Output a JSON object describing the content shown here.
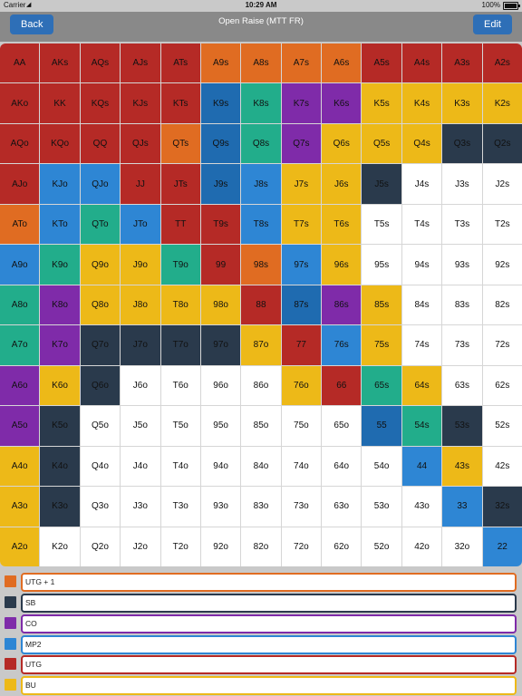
{
  "status_bar": {
    "carrier": "Carrier",
    "time": "10:29 AM",
    "battery": "100%"
  },
  "nav": {
    "back_label": "Back",
    "title": "Open Raise (MTT FR)",
    "edit_label": "Edit"
  },
  "colors": {
    "R": "#b52a26",
    "O": "#e06c22",
    "Y": "#edb918",
    "G": "#22ad8b",
    "B": "#2e86d4",
    "D": "#1f6bb0",
    "P": "#7f2ba9",
    "N": "#2a3a4c",
    "W": "#ffffff"
  },
  "grid": {
    "rows": [
      [
        "AA",
        "AKs",
        "AQs",
        "AJs",
        "ATs",
        "A9s",
        "A8s",
        "A7s",
        "A6s",
        "A5s",
        "A4s",
        "A3s",
        "A2s"
      ],
      [
        "AKo",
        "KK",
        "KQs",
        "KJs",
        "KTs",
        "K9s",
        "K8s",
        "K7s",
        "K6s",
        "K5s",
        "K4s",
        "K3s",
        "K2s"
      ],
      [
        "AQo",
        "KQo",
        "QQ",
        "QJs",
        "QTs",
        "Q9s",
        "Q8s",
        "Q7s",
        "Q6s",
        "Q5s",
        "Q4s",
        "Q3s",
        "Q2s"
      ],
      [
        "AJo",
        "KJo",
        "QJo",
        "JJ",
        "JTs",
        "J9s",
        "J8s",
        "J7s",
        "J6s",
        "J5s",
        "J4s",
        "J3s",
        "J2s"
      ],
      [
        "ATo",
        "KTo",
        "QTo",
        "JTo",
        "TT",
        "T9s",
        "T8s",
        "T7s",
        "T6s",
        "T5s",
        "T4s",
        "T3s",
        "T2s"
      ],
      [
        "A9o",
        "K9o",
        "Q9o",
        "J9o",
        "T9o",
        "99",
        "98s",
        "97s",
        "96s",
        "95s",
        "94s",
        "93s",
        "92s"
      ],
      [
        "A8o",
        "K8o",
        "Q8o",
        "J8o",
        "T8o",
        "98o",
        "88",
        "87s",
        "86s",
        "85s",
        "84s",
        "83s",
        "82s"
      ],
      [
        "A7o",
        "K7o",
        "Q7o",
        "J7o",
        "T7o",
        "97o",
        "87o",
        "77",
        "76s",
        "75s",
        "74s",
        "73s",
        "72s"
      ],
      [
        "A6o",
        "K6o",
        "Q6o",
        "J6o",
        "T6o",
        "96o",
        "86o",
        "76o",
        "66",
        "65s",
        "64s",
        "63s",
        "62s"
      ],
      [
        "A5o",
        "K5o",
        "Q5o",
        "J5o",
        "T5o",
        "95o",
        "85o",
        "75o",
        "65o",
        "55",
        "54s",
        "53s",
        "52s"
      ],
      [
        "A4o",
        "K4o",
        "Q4o",
        "J4o",
        "T4o",
        "94o",
        "84o",
        "74o",
        "64o",
        "54o",
        "44",
        "43s",
        "42s"
      ],
      [
        "A3o",
        "K3o",
        "Q3o",
        "J3o",
        "T3o",
        "93o",
        "83o",
        "73o",
        "63o",
        "53o",
        "43o",
        "33",
        "32s"
      ],
      [
        "A2o",
        "K2o",
        "Q2o",
        "J2o",
        "T2o",
        "92o",
        "82o",
        "72o",
        "62o",
        "52o",
        "42o",
        "32o",
        "22"
      ]
    ],
    "cell_colors": [
      [
        "R",
        "R",
        "R",
        "R",
        "R",
        "O",
        "O",
        "O",
        "O",
        "R",
        "R",
        "R",
        "R"
      ],
      [
        "R",
        "R",
        "R",
        "R",
        "R",
        "D",
        "G",
        "P",
        "P",
        "Y",
        "Y",
        "Y",
        "Y"
      ],
      [
        "R",
        "R",
        "R",
        "R",
        "O",
        "D",
        "G",
        "P",
        "Y",
        "Y",
        "Y",
        "N",
        "N"
      ],
      [
        "R",
        "B",
        "B",
        "R",
        "R",
        "D",
        "B",
        "Y",
        "Y",
        "N",
        "W",
        "W",
        "W"
      ],
      [
        "O",
        "B",
        "G",
        "B",
        "R",
        "R",
        "B",
        "Y",
        "Y",
        "W",
        "W",
        "W",
        "W"
      ],
      [
        "B",
        "G",
        "Y",
        "Y",
        "G",
        "R",
        "O",
        "B",
        "Y",
        "W",
        "W",
        "W",
        "W"
      ],
      [
        "G",
        "P",
        "Y",
        "Y",
        "Y",
        "Y",
        "R",
        "D",
        "P",
        "Y",
        "W",
        "W",
        "W"
      ],
      [
        "G",
        "P",
        "N",
        "N",
        "N",
        "N",
        "Y",
        "R",
        "B",
        "Y",
        "W",
        "W",
        "W"
      ],
      [
        "P",
        "Y",
        "N",
        "W",
        "W",
        "W",
        "W",
        "Y",
        "R",
        "G",
        "Y",
        "W",
        "W"
      ],
      [
        "P",
        "N",
        "W",
        "W",
        "W",
        "W",
        "W",
        "W",
        "W",
        "D",
        "G",
        "N",
        "W"
      ],
      [
        "Y",
        "N",
        "W",
        "W",
        "W",
        "W",
        "W",
        "W",
        "W",
        "W",
        "B",
        "Y",
        "W"
      ],
      [
        "Y",
        "N",
        "W",
        "W",
        "W",
        "W",
        "W",
        "W",
        "W",
        "W",
        "W",
        "B",
        "N"
      ],
      [
        "Y",
        "W",
        "W",
        "W",
        "W",
        "W",
        "W",
        "W",
        "W",
        "W",
        "W",
        "W",
        "B"
      ]
    ]
  },
  "legend": [
    {
      "label": "UTG + 1",
      "color": "#e06c22"
    },
    {
      "label": "SB",
      "color": "#2a3a4c"
    },
    {
      "label": "CO",
      "color": "#7f2ba9"
    },
    {
      "label": "MP2",
      "color": "#2e86d4"
    },
    {
      "label": "UTG",
      "color": "#b52a26"
    },
    {
      "label": "BU",
      "color": "#edb918"
    }
  ]
}
